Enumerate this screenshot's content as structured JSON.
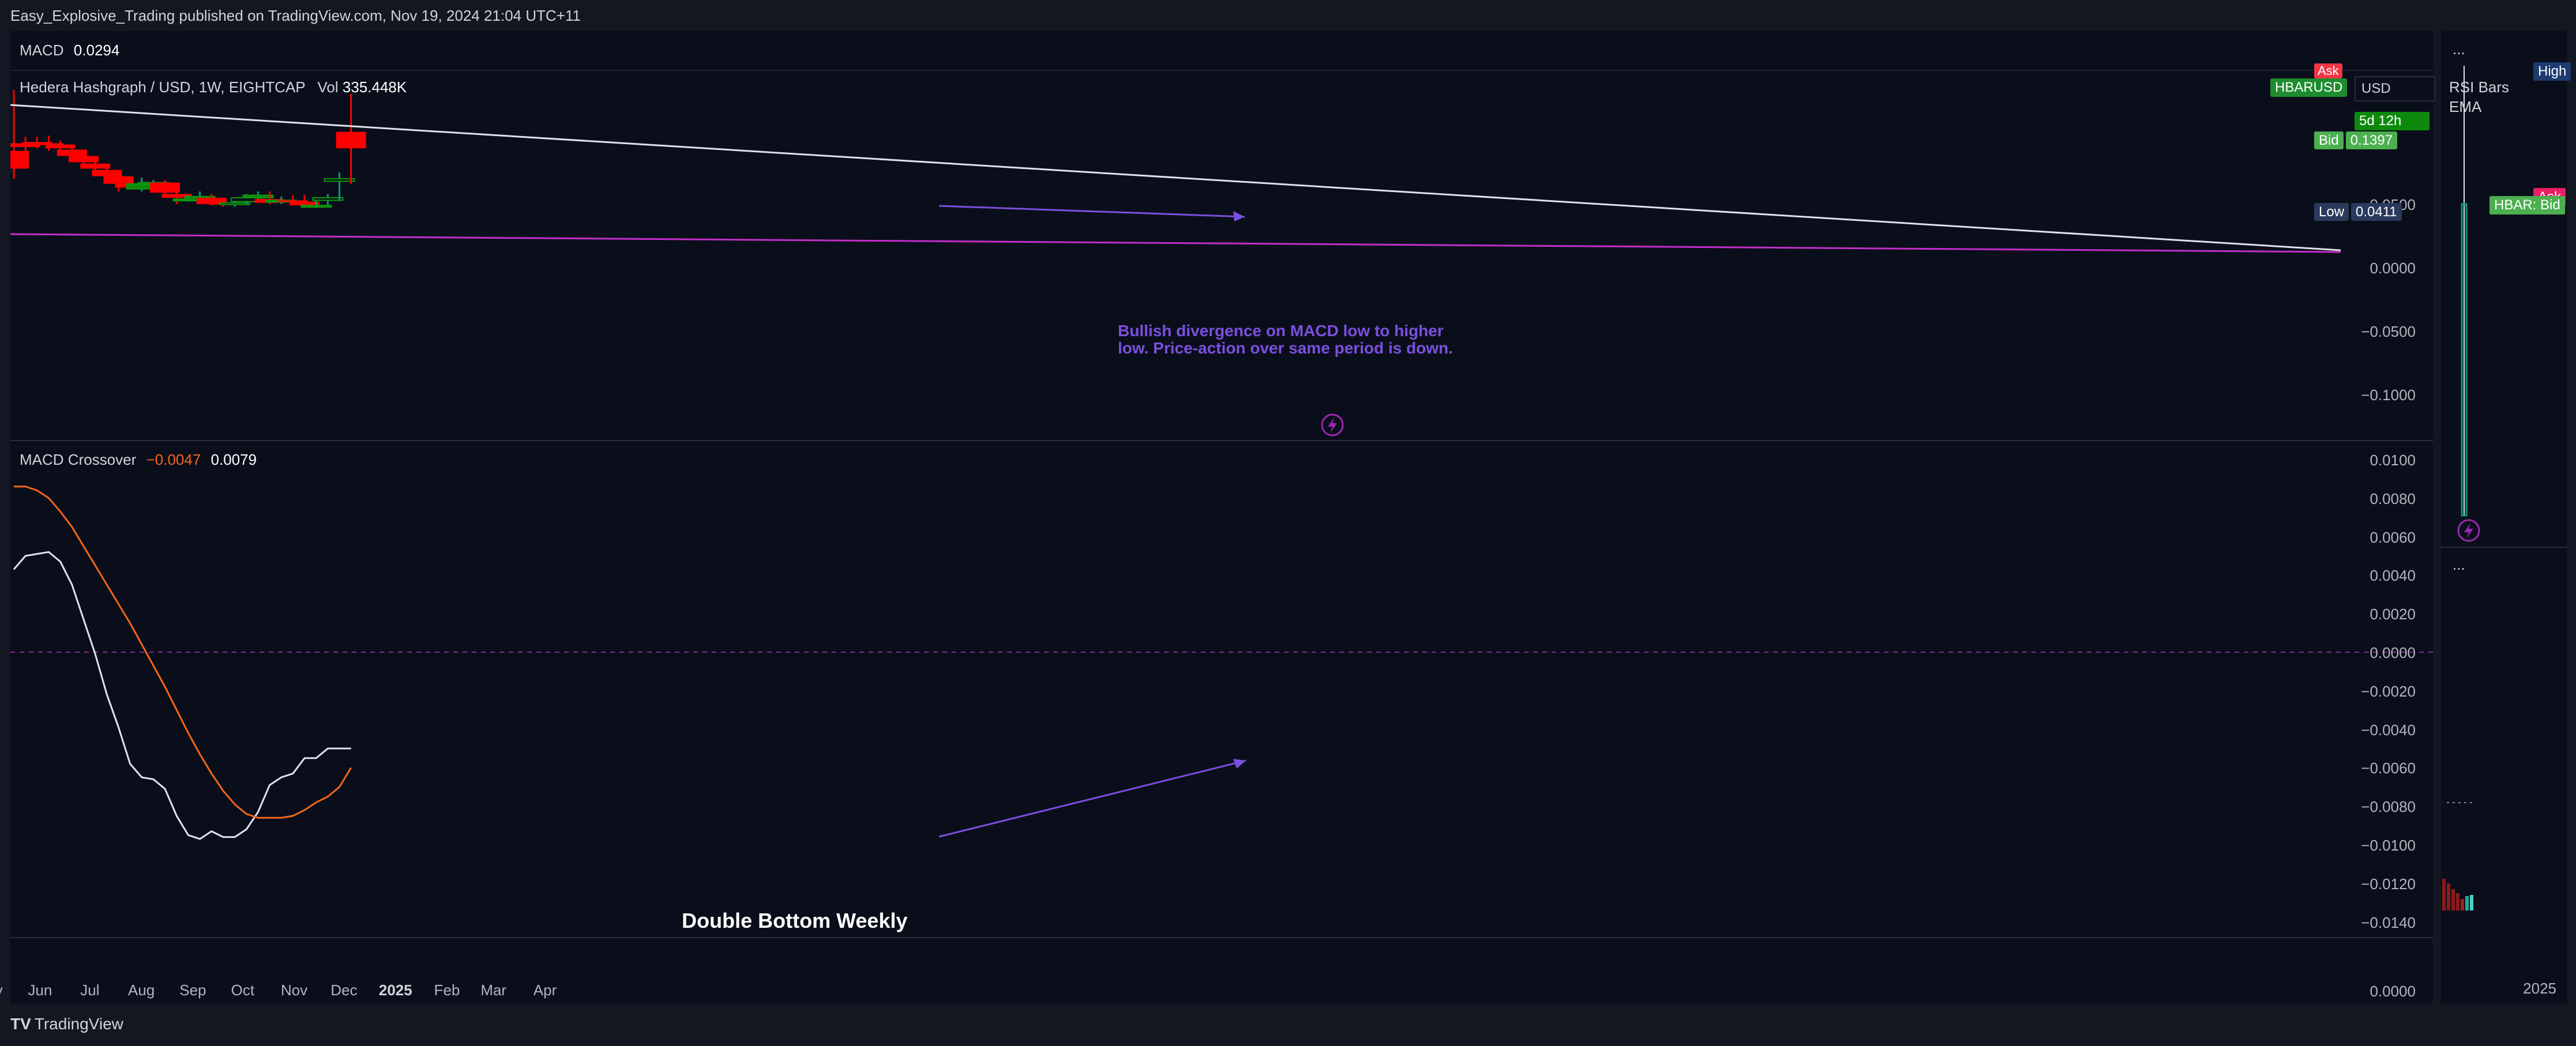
{
  "header": {
    "publisher": "Easy_Explosive_Trading published on TradingView.com, Nov 19, 2024 21:04 UTC+11"
  },
  "footer": {
    "brand": "TradingView"
  },
  "price_pane": {
    "indicator_label": "MACD",
    "indicator_value": "0.0294",
    "symbol_desc": "Hedera Hashgraph / USD, 1W, EIGHTCAP",
    "vol_label": "Vol",
    "vol_value": "335.448K",
    "annotation": "Bullish divergence on MACD low to higher\nlow. Price-action over same period is down.",
    "y_ticks": [
      "0.0500",
      "0.0000",
      "−0.0500",
      "−0.1000"
    ],
    "badges": {
      "ask": "Ask",
      "symbol": "HBARUSD",
      "currency": "USD",
      "countdown": "5d 12h",
      "bid_label": "Bid",
      "bid_value": "0.1397",
      "low_label": "Low",
      "low_value": "0.0411"
    }
  },
  "macd_pane": {
    "label": "MACD Crossover",
    "value1": "−0.0047",
    "value2": "0.0079",
    "annotation": "Double Bottom Weekly",
    "y_ticks": [
      "0.0100",
      "0.0080",
      "0.0060",
      "0.0040",
      "0.0020",
      "0.0000",
      "−0.0020",
      "−0.0040",
      "−0.0060",
      "−0.0080",
      "−0.0100",
      "−0.0120",
      "−0.0140"
    ],
    "bottom_tick": "0.0000"
  },
  "side_pane": {
    "menu1": "...",
    "rsi_bars": "RSI Bars",
    "ema": "EMA",
    "high_badge": "High",
    "ask_badge": "Ask",
    "hbar_badge": "HBAR: Bid",
    "menu2": "...",
    "x_tick": "2025"
  },
  "x_axis": [
    "May",
    "Jun",
    "Jul",
    "Aug",
    "Sep",
    "Oct",
    "Nov",
    "Dec",
    "2025",
    "Feb",
    "Mar",
    "Apr"
  ],
  "colors": {
    "up": "#089981",
    "up_fill": "#0d8a0d",
    "down": "#ff0000",
    "macd": "#e0e3eb",
    "signal": "#f2661b",
    "trend": "#e0e3eb",
    "magenta": "#c32ec9",
    "divergence": "#7b4fe0",
    "low_badge": "#2a3a5c",
    "ask_badge": "#f23645",
    "green_badge": "#1e8c2e"
  },
  "chart_data": [
    {
      "type": "candlestick",
      "title": "Hedera Hashgraph / USD, 1W, EIGHTCAP",
      "x": [
        "2024-04-29",
        "2024-05-06",
        "2024-05-13",
        "2024-05-20",
        "2024-05-27",
        "2024-06-03",
        "2024-06-10",
        "2024-06-17",
        "2024-06-24",
        "2024-07-01",
        "2024-07-08",
        "2024-07-15",
        "2024-07-22",
        "2024-07-29",
        "2024-08-05",
        "2024-08-12",
        "2024-08-19",
        "2024-08-26",
        "2024-09-02",
        "2024-09-09",
        "2024-09-16",
        "2024-09-23",
        "2024-09-30",
        "2024-10-07",
        "2024-10-14",
        "2024-10-21",
        "2024-10-28",
        "2024-11-04",
        "2024-11-11",
        "2024-11-18"
      ],
      "open": [
        0.092,
        0.098,
        0.099,
        0.098,
        0.097,
        0.093,
        0.088,
        0.082,
        0.077,
        0.072,
        0.066,
        0.062,
        0.066,
        0.067,
        0.058,
        0.054,
        0.053,
        0.055,
        0.051,
        0.05,
        0.052,
        0.055,
        0.054,
        0.052,
        0.053,
        0.052,
        0.048,
        0.053,
        0.068,
        0.107
      ],
      "high": [
        0.14,
        0.103,
        0.103,
        0.104,
        0.1,
        0.097,
        0.093,
        0.086,
        0.081,
        0.076,
        0.07,
        0.071,
        0.069,
        0.069,
        0.061,
        0.057,
        0.06,
        0.058,
        0.054,
        0.053,
        0.058,
        0.06,
        0.06,
        0.056,
        0.057,
        0.057,
        0.054,
        0.058,
        0.075,
        0.137
      ],
      "low": [
        0.07,
        0.082,
        0.094,
        0.092,
        0.093,
        0.085,
        0.082,
        0.076,
        0.07,
        0.06,
        0.062,
        0.06,
        0.063,
        0.058,
        0.05,
        0.052,
        0.05,
        0.049,
        0.048,
        0.048,
        0.05,
        0.052,
        0.05,
        0.05,
        0.05,
        0.047,
        0.047,
        0.049,
        0.053,
        0.066
      ],
      "close": [
        0.078,
        0.095,
        0.098,
        0.097,
        0.094,
        0.088,
        0.083,
        0.078,
        0.072,
        0.066,
        0.063,
        0.066,
        0.067,
        0.059,
        0.055,
        0.054,
        0.056,
        0.05,
        0.05,
        0.051,
        0.055,
        0.057,
        0.051,
        0.053,
        0.052,
        0.049,
        0.049,
        0.055,
        0.07,
        0.094
      ],
      "y_ticks": [
        0.05,
        0.0,
        -0.05,
        -0.1
      ],
      "overlays": [
        "descending trendline",
        "magenta line",
        "divergence arrow Sep-Nov"
      ]
    },
    {
      "type": "line",
      "title": "MACD Crossover",
      "x": [
        "2024-04-29",
        "2024-05-06",
        "2024-05-13",
        "2024-05-20",
        "2024-05-27",
        "2024-06-03",
        "2024-06-10",
        "2024-06-17",
        "2024-06-24",
        "2024-07-01",
        "2024-07-08",
        "2024-07-15",
        "2024-07-22",
        "2024-07-29",
        "2024-08-05",
        "2024-08-12",
        "2024-08-19",
        "2024-08-26",
        "2024-09-02",
        "2024-09-09",
        "2024-09-16",
        "2024-09-23",
        "2024-09-30",
        "2024-10-07",
        "2024-10-14",
        "2024-10-21",
        "2024-10-28",
        "2024-11-04",
        "2024-11-11",
        "2024-11-18"
      ],
      "series": [
        {
          "name": "",
          "color": "#e0e3eb",
          "values": [
            0.0043,
            0.005,
            0.0051,
            0.0052,
            0.0047,
            0.0035,
            0.0017,
            -0.0001,
            -0.0022,
            -0.0039,
            -0.0058,
            -0.0065,
            -0.0066,
            -0.0071,
            -0.0085,
            -0.0095,
            -0.0097,
            -0.0093,
            -0.0096,
            -0.0096,
            -0.0092,
            -0.0083,
            -0.0069,
            -0.0065,
            -0.0063,
            -0.0055,
            -0.0055,
            -0.005,
            -0.005,
            -0.005
          ]
        },
        {
          "name": "",
          "color": "#f2661b",
          "values": [
            0.0086,
            0.0086,
            0.0084,
            0.008,
            0.0073,
            0.0065,
            0.0055,
            0.0045,
            0.0035,
            0.0025,
            0.0015,
            0.0004,
            -0.0007,
            -0.0018,
            -0.003,
            -0.0042,
            -0.0053,
            -0.0063,
            -0.0072,
            -0.0079,
            -0.0084,
            -0.0086,
            -0.0086,
            -0.0086,
            -0.0085,
            -0.0082,
            -0.0078,
            -0.0075,
            -0.007,
            -0.006
          ]
        }
      ],
      "y_ticks": [
        0.01,
        0.008,
        0.006,
        0.004,
        0.002,
        0,
        -0.002,
        -0.004,
        -0.006,
        -0.008,
        -0.01,
        -0.012,
        -0.014
      ],
      "ylim": [
        -0.0155,
        0.0103
      ],
      "zero_line": true
    }
  ]
}
